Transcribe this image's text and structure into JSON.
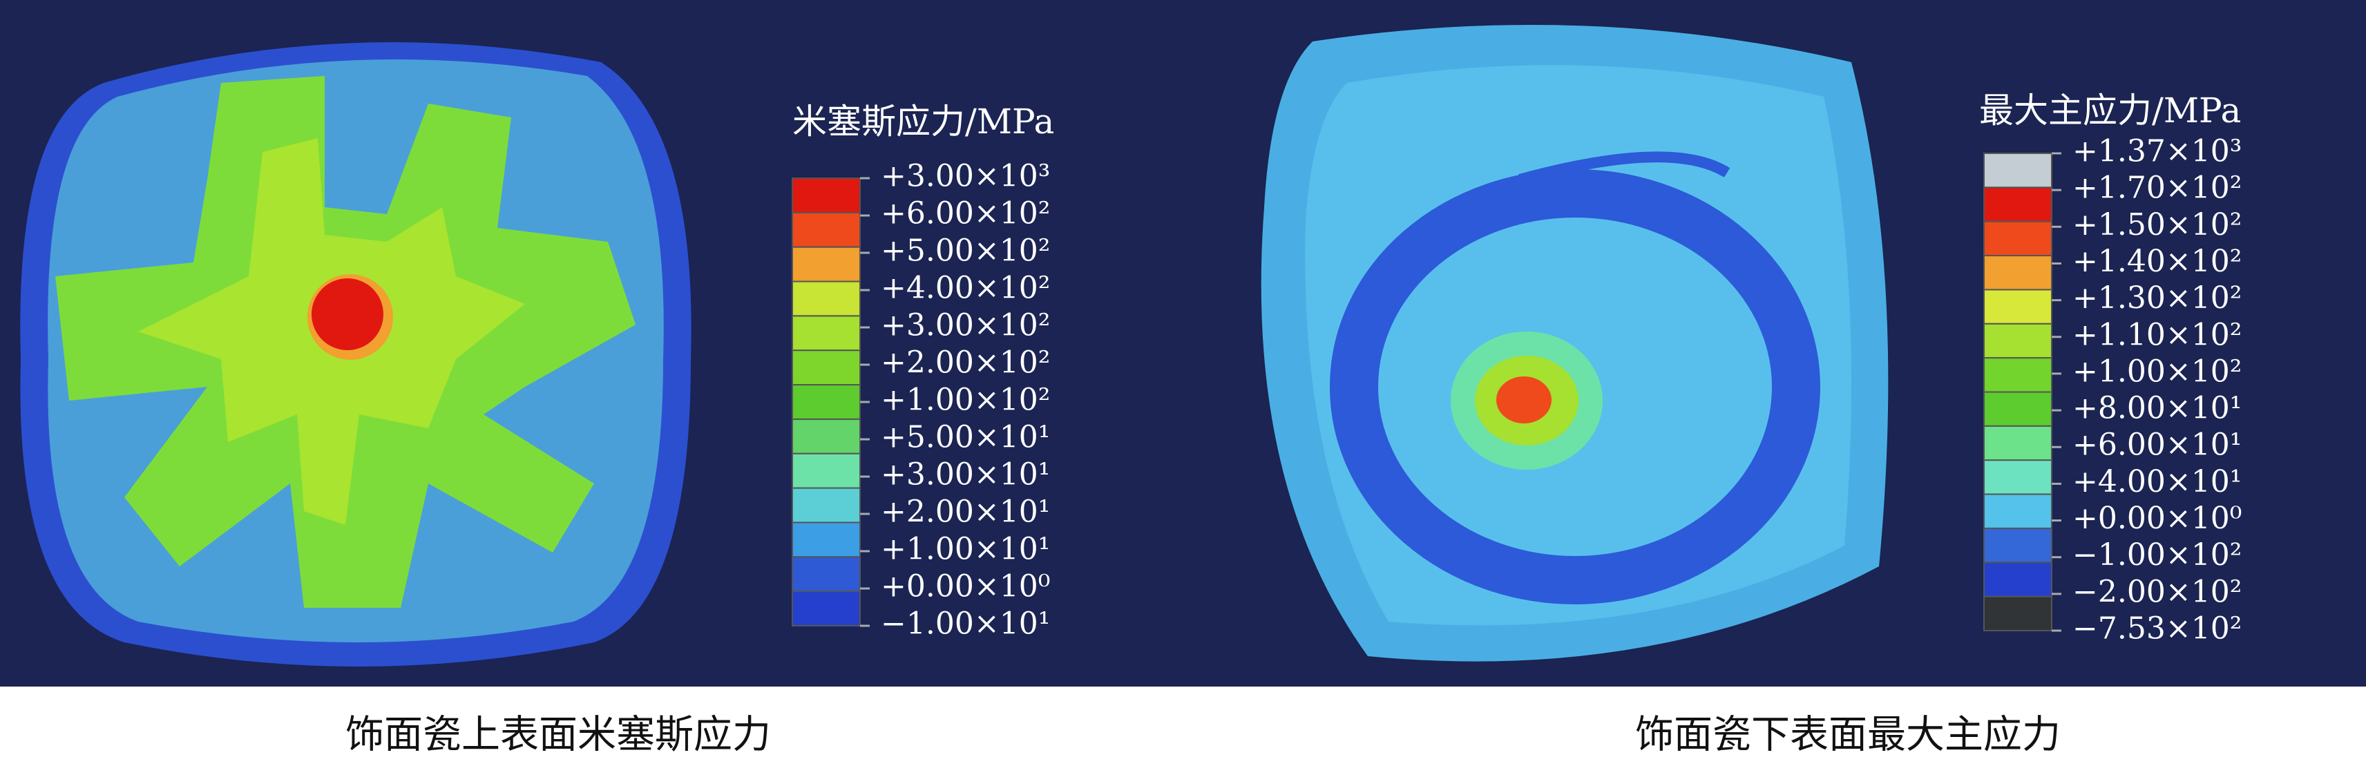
{
  "legends": [
    {
      "title": "米塞斯应力/MPa",
      "labels": [
        "+3.00×10³",
        "+6.00×10²",
        "+5.00×10²",
        "+4.00×10²",
        "+3.00×10²",
        "+2.00×10²",
        "+1.00×10²",
        "+5.00×10¹",
        "+3.00×10¹",
        "+2.00×10¹",
        "+1.00×10¹",
        "+0.00×10⁰",
        "−1.00×10¹"
      ],
      "colors": [
        "#e01810",
        "#ee4a1c",
        "#f2a030",
        "#c8e434",
        "#a6e030",
        "#7ed62c",
        "#5ccc2e",
        "#62d46a",
        "#6ce2a8",
        "#5ccfd6",
        "#3c9ee4",
        "#2e5ad6",
        "#2440cc"
      ]
    },
    {
      "title": "最大主应力/MPa",
      "labels": [
        "+1.37×10³",
        "+1.70×10²",
        "+1.50×10²",
        "+1.40×10²",
        "+1.30×10²",
        "+1.10×10²",
        "+1.00×10²",
        "+8.00×10¹",
        "+6.00×10¹",
        "+4.00×10¹",
        "+0.00×10⁰",
        "−1.00×10²",
        "−2.00×10²",
        "−7.53×10²"
      ],
      "colors": [
        "#c4ccd4",
        "#e01810",
        "#ee4a1c",
        "#f2a030",
        "#d8e83a",
        "#a6e030",
        "#72d42c",
        "#5ccc2e",
        "#6ce28a",
        "#6ce2c0",
        "#54c2ea",
        "#3468d8",
        "#2440cc",
        "#303436"
      ]
    }
  ],
  "captions": [
    "饰面瓷上表面米塞斯应力",
    "饰面瓷下表面最大主应力"
  ]
}
